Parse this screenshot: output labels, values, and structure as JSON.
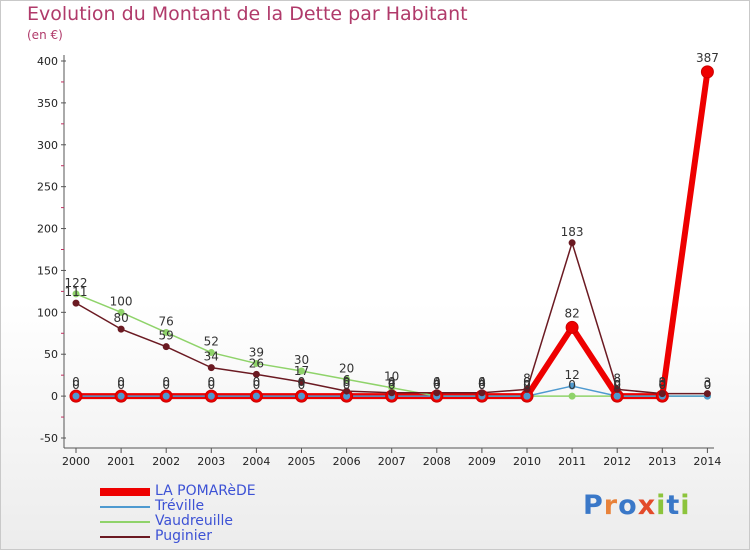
{
  "header": {
    "title": "Evolution du Montant de la Dette par Habitant",
    "unit": "(en €)"
  },
  "brand": {
    "logo_letters": [
      "P",
      "r",
      "o",
      "x",
      "i",
      "t",
      "i"
    ],
    "logo_colors": [
      "#3a78c8",
      "#e8823a",
      "#3a78c8",
      "#e34a2a",
      "#8cc43c",
      "#3a78c8",
      "#8cc43c"
    ]
  },
  "chart_data": {
    "type": "line",
    "title": "Evolution du Montant de la Dette par Habitant",
    "ylabel": "(en €)",
    "xlabel": "",
    "ylim": [
      -50,
      400
    ],
    "yticks": [
      -50,
      0,
      50,
      100,
      150,
      200,
      250,
      300,
      350,
      400
    ],
    "x": [
      "2000",
      "2001",
      "2002",
      "2003",
      "2004",
      "2005",
      "2006",
      "2007",
      "2008",
      "2009",
      "2010",
      "2011",
      "2012",
      "2013",
      "2014"
    ],
    "grid": false,
    "legend_position": "bottom-left",
    "series": [
      {
        "name": "LA POMARèDE",
        "color": "#ee0000",
        "values": [
          0,
          0,
          0,
          0,
          0,
          0,
          0,
          0,
          0,
          0,
          0,
          82,
          0,
          0,
          387
        ],
        "labels": [
          "0",
          "0",
          "0",
          "0",
          "0",
          "0",
          "0",
          "0",
          "0",
          "0",
          "0",
          "82",
          "0",
          "0",
          "387"
        ]
      },
      {
        "name": "Tréville",
        "color": "#4e9ad0",
        "values": [
          0,
          0,
          0,
          0,
          0,
          0,
          0,
          0,
          0,
          0,
          0,
          12,
          0,
          0,
          0
        ],
        "labels": [
          "0",
          "0",
          "0",
          "0",
          "0",
          "0",
          "0",
          "0",
          "0",
          "0",
          "0",
          "12",
          "0",
          "0",
          "0"
        ]
      },
      {
        "name": "Vaudreuille",
        "color": "#8fd36a",
        "values": [
          122,
          100,
          76,
          52,
          39,
          30,
          20,
          10,
          0,
          0,
          0,
          0,
          0,
          0,
          0
        ],
        "labels": [
          "122",
          "100",
          "76",
          "52",
          "39",
          "30",
          "20",
          "10",
          "0",
          "0",
          "0",
          "0",
          "0",
          "0",
          "0"
        ]
      },
      {
        "name": "Puginier",
        "color": "#6b1a22",
        "values": [
          111,
          80,
          59,
          34,
          26,
          17,
          6,
          4,
          4,
          4,
          8,
          183,
          8,
          3,
          3
        ],
        "labels": [
          "111",
          "80",
          "59",
          "34",
          "26",
          "17",
          "6",
          "4",
          "4",
          "4",
          "8",
          "183",
          "8",
          "3",
          "3"
        ]
      }
    ]
  }
}
